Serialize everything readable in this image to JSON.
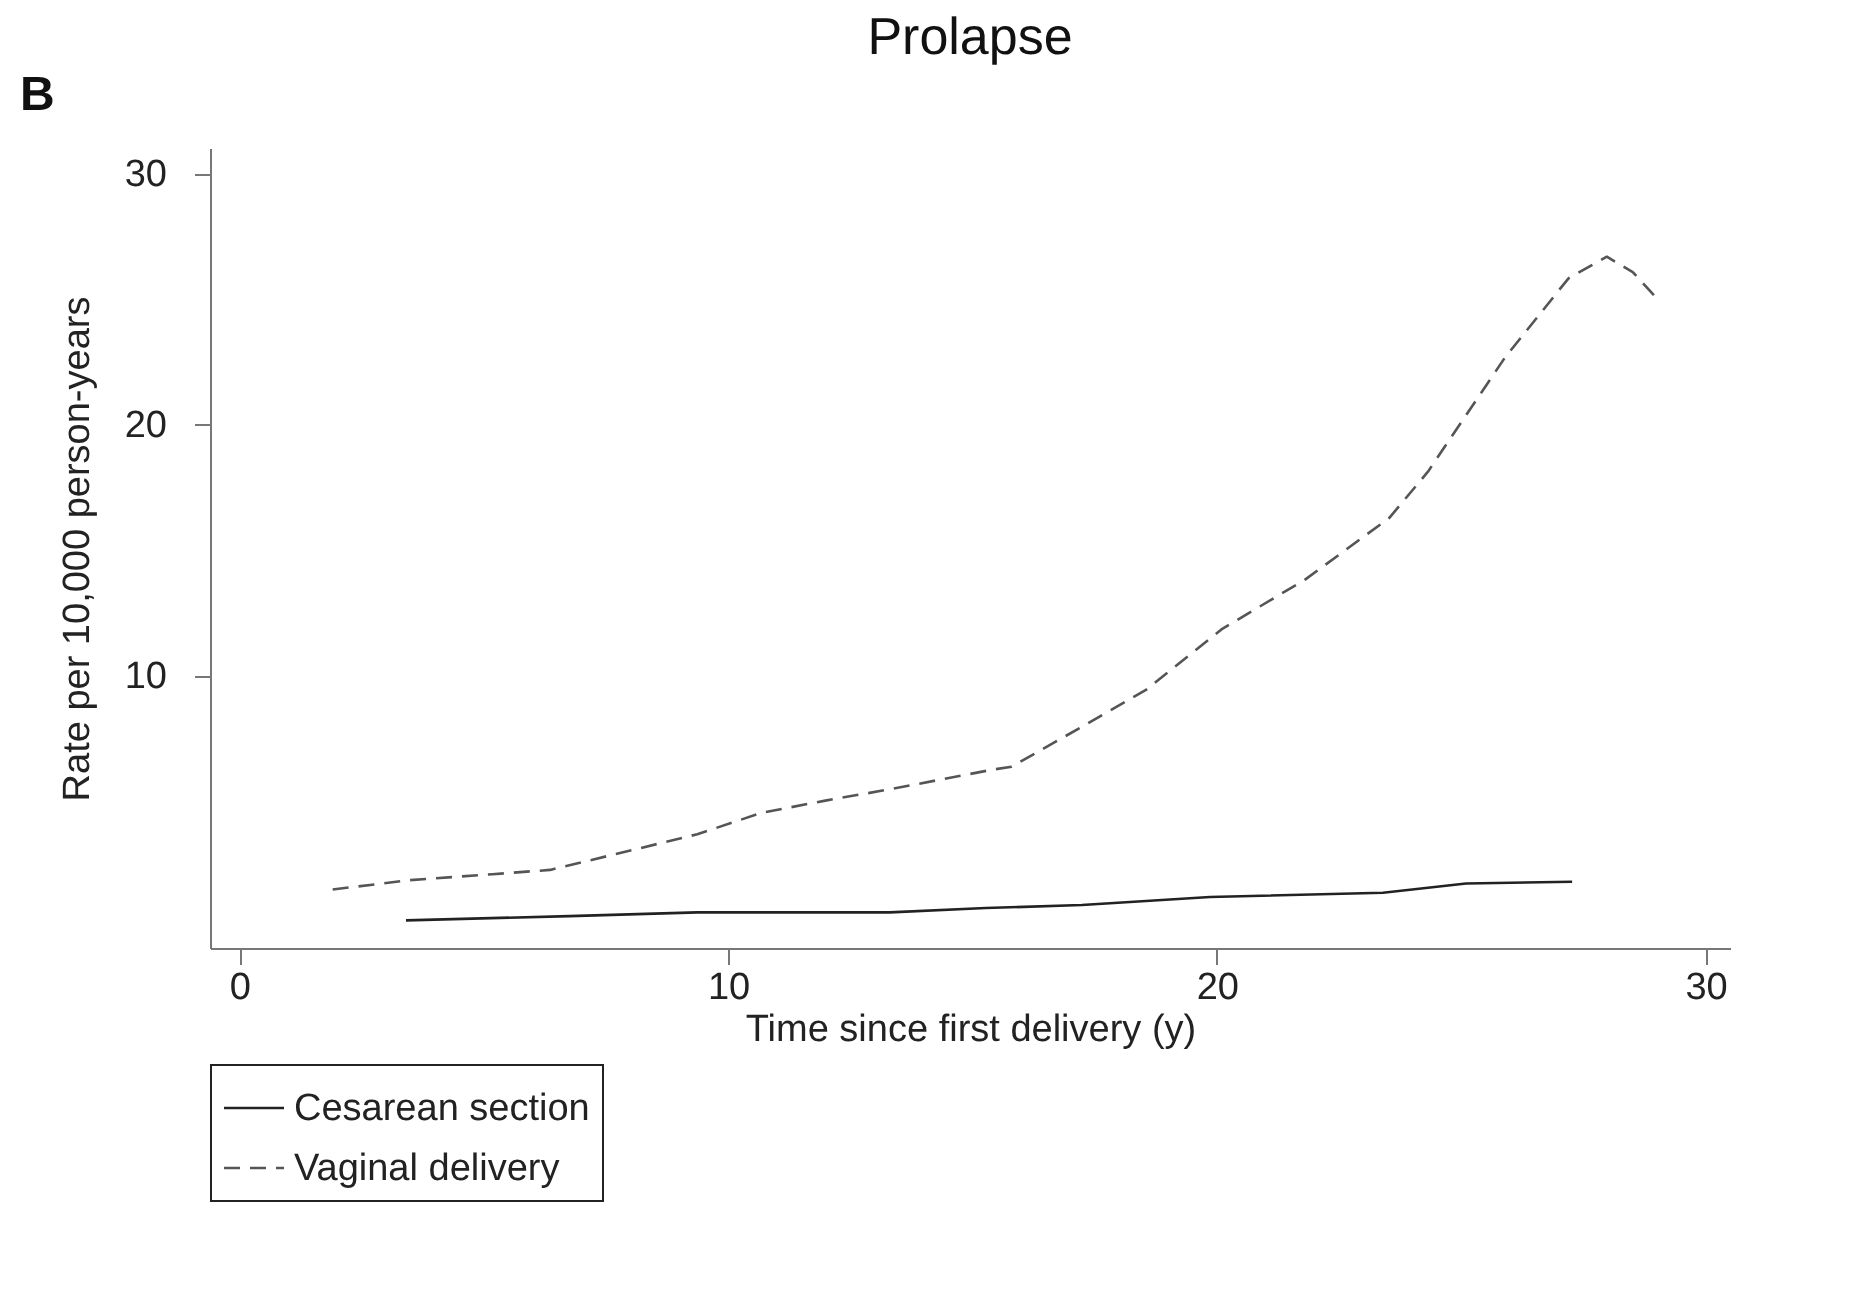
{
  "chart_data": {
    "type": "line",
    "title": "Prolapse",
    "xlabel": "Time since first delivery (y)",
    "ylabel": "Rate per 10,000 person-years",
    "annotations": [
      "B"
    ],
    "xlim": [
      -0.6,
      30.5
    ],
    "xticks": [
      0,
      10,
      20,
      30
    ],
    "ylim": [
      -0.86,
      31
    ],
    "yticks": [
      10,
      20,
      30
    ],
    "grid": false,
    "legend": "bottom",
    "marker": "none",
    "series": [
      {
        "name": "Cesarean section",
        "color": "#222222",
        "line_style": "solid",
        "x": [
          3.41,
          6.75,
          9.37,
          13.31,
          15.27,
          17.24,
          19.86,
          23.4,
          25.1,
          27.27
        ],
        "values": [
          0.24,
          0.41,
          0.56,
          0.56,
          0.73,
          0.85,
          1.17,
          1.34,
          1.71,
          1.78
        ]
      },
      {
        "name": "Vaginal delivery",
        "color": "#555555",
        "line_style": "dashed",
        "x": [
          1.91,
          3.48,
          5.18,
          6.36,
          8.06,
          9.37,
          10.68,
          11.99,
          13.31,
          15.4,
          15.8,
          17.24,
          18.55,
          20.12,
          21.82,
          23.53,
          24.32,
          25.89,
          27.2,
          27.98,
          28.51,
          28.97
        ],
        "values": [
          1.47,
          1.84,
          2.08,
          2.25,
          3.05,
          3.67,
          4.52,
          5.01,
          5.46,
          6.24,
          6.36,
          7.95,
          9.42,
          11.86,
          13.83,
          16.27,
          18.11,
          22.64,
          25.82,
          26.67,
          26.06,
          25.08
        ]
      }
    ]
  }
}
